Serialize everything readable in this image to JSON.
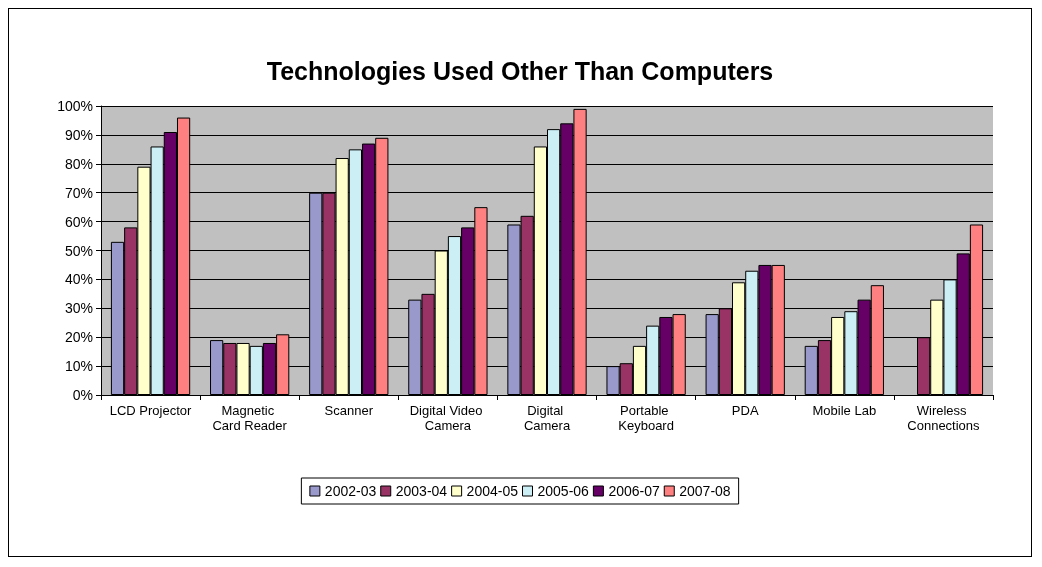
{
  "chart_data": {
    "type": "bar",
    "title": "Technologies Used Other Than Computers",
    "categories": [
      "LCD Projector",
      "Magnetic Card Reader",
      "Scanner",
      "Digital Video Camera",
      "Digital Camera",
      "Portable Keyboard",
      "PDA",
      "Mobile Lab",
      "Wireless Connections"
    ],
    "series": [
      {
        "name": "2002-03",
        "color": "#9999cc",
        "values": [
          53,
          19,
          70,
          33,
          59,
          10,
          28,
          17,
          null
        ]
      },
      {
        "name": "2003-04",
        "color": "#993366",
        "values": [
          58,
          18,
          70,
          35,
          62,
          11,
          30,
          19,
          20
        ]
      },
      {
        "name": "2004-05",
        "color": "#ffffcc",
        "values": [
          79,
          18,
          82,
          50,
          86,
          17,
          39,
          27,
          33
        ]
      },
      {
        "name": "2005-06",
        "color": "#cceef5",
        "values": [
          86,
          17,
          85,
          55,
          92,
          24,
          43,
          29,
          40
        ]
      },
      {
        "name": "2006-07",
        "color": "#660066",
        "values": [
          91,
          18,
          87,
          58,
          94,
          27,
          45,
          33,
          49
        ]
      },
      {
        "name": "2007-08",
        "color": "#ff8080",
        "values": [
          96,
          21,
          89,
          65,
          99,
          28,
          45,
          38,
          59
        ]
      }
    ],
    "ylim": [
      0,
      100
    ],
    "yticks": [
      {
        "value": 0,
        "label": "0%"
      },
      {
        "value": 10,
        "label": "10%"
      },
      {
        "value": 20,
        "label": "20%"
      },
      {
        "value": 30,
        "label": "30%"
      },
      {
        "value": 40,
        "label": "40%"
      },
      {
        "value": 50,
        "label": "50%"
      },
      {
        "value": 60,
        "label": "60%"
      },
      {
        "value": 70,
        "label": "70%"
      },
      {
        "value": 80,
        "label": "80%"
      },
      {
        "value": 90,
        "label": "90%"
      },
      {
        "value": 100,
        "label": "100%"
      }
    ],
    "grid": "y",
    "legend": "bottom"
  }
}
